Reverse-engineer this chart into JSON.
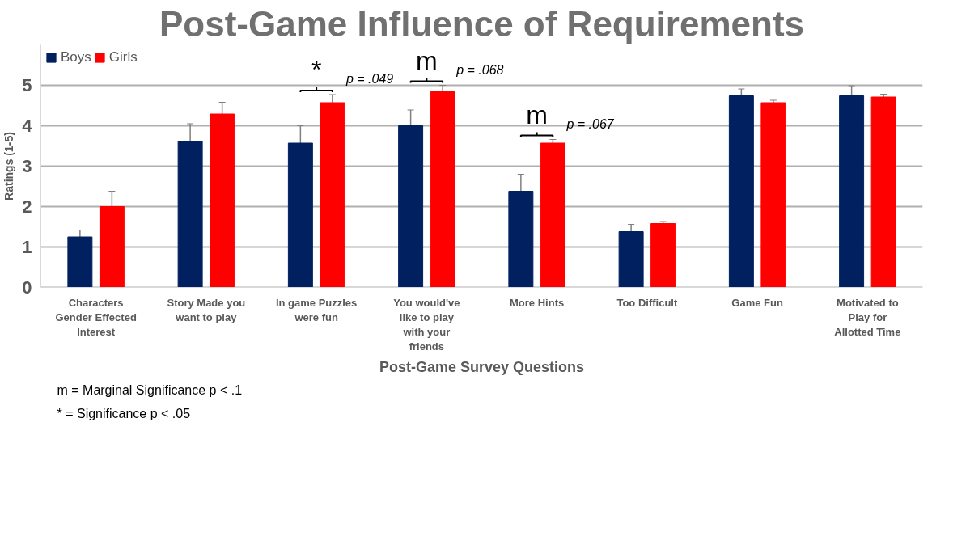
{
  "chart_data": {
    "type": "bar",
    "title": "Post-Game Influence of Requirements",
    "xlabel": "Post-Game Survey Questions",
    "ylabel": "Ratings (1-5)",
    "categories": [
      "Characters Gender Effected Interest",
      "Story Made you want to play",
      "In game Puzzles were fun",
      "You would've like to play with your friends",
      "More Hints",
      "Too Difficult",
      "Game Fun",
      "Motivated to Play for Allotted Time"
    ],
    "series": [
      {
        "name": "Boys",
        "color": "#002060",
        "values": [
          1.25,
          3.62,
          3.57,
          4.0,
          2.38,
          1.38,
          4.74,
          4.74
        ],
        "errors": [
          0.17,
          0.43,
          0.43,
          0.39,
          0.42,
          0.18,
          0.17,
          0.25
        ]
      },
      {
        "name": "Girls",
        "color": "#ff0000",
        "values": [
          2.0,
          4.29,
          4.57,
          4.86,
          3.57,
          1.58,
          4.57,
          4.71
        ],
        "errors": [
          0.38,
          0.29,
          0.2,
          0.14,
          0.09,
          0.05,
          0.06,
          0.07
        ]
      }
    ],
    "ylim": [
      0,
      6
    ],
    "yticks": [
      0,
      1,
      2,
      3,
      4,
      5
    ],
    "grid": "y",
    "legend": "top left",
    "annotations": [
      "*",
      "p = .049",
      "m",
      "p = .068",
      "m",
      "p = .067",
      "m = Marginal Significance p < .1",
      "* = Significance p < .05"
    ]
  }
}
